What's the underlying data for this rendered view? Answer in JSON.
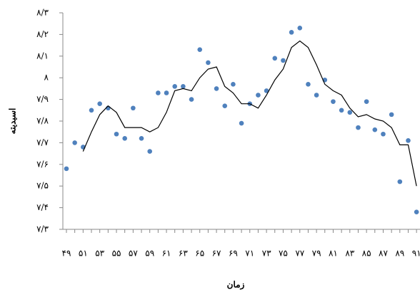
{
  "chart_data": {
    "type": "line",
    "y_label": "اسیدیته",
    "x_label": "زمان",
    "categories": [
      "۴۹",
      null,
      "۵۱",
      null,
      "۵۳",
      null,
      "۵۵",
      null,
      "۵۷",
      null,
      "۵۹",
      null,
      "۶۱",
      null,
      "۶۳",
      null,
      "۶۵",
      null,
      "۶۷",
      null,
      "۶۹",
      null,
      "۷۱",
      null,
      "۷۳",
      null,
      "۷۵",
      null,
      "۷۷",
      null,
      "۷۹",
      null,
      "۸۱",
      null,
      "۸۳",
      null,
      "۸۵",
      null,
      "۸۷",
      null,
      "۸۹",
      null,
      "۹۱"
    ],
    "series": [
      {
        "mode": "markers",
        "color": "#4f81bd",
        "values": [
          7.58,
          7.7,
          7.68,
          7.85,
          7.88,
          7.86,
          7.74,
          7.72,
          7.86,
          7.72,
          7.66,
          7.93,
          7.93,
          7.96,
          7.96,
          7.9,
          8.13,
          8.07,
          7.95,
          7.87,
          7.97,
          7.79,
          7.88,
          7.92,
          7.94,
          8.09,
          8.08,
          8.21,
          8.23,
          7.97,
          7.92,
          7.99,
          7.89,
          7.85,
          7.84,
          7.77,
          7.89,
          7.76,
          7.74,
          7.83,
          7.52,
          7.71,
          7.38
        ]
      },
      {
        "mode": "line",
        "color": "#000000",
        "values": [
          null,
          null,
          7.66,
          7.75,
          7.83,
          7.87,
          7.84,
          7.77,
          7.77,
          7.77,
          7.75,
          7.77,
          7.84,
          7.94,
          7.95,
          7.94,
          8.0,
          8.04,
          8.05,
          7.96,
          7.93,
          7.88,
          7.88,
          7.86,
          7.92,
          7.99,
          8.04,
          8.14,
          8.17,
          8.14,
          8.06,
          7.97,
          7.94,
          7.92,
          7.86,
          7.82,
          7.83,
          7.81,
          7.8,
          7.77,
          7.69,
          7.69,
          7.5
        ]
      }
    ],
    "ylim": [
      7.3,
      8.3
    ],
    "yticks": [
      {
        "value": 7.3,
        "label": "۷/۳"
      },
      {
        "value": 7.4,
        "label": "۷/۴"
      },
      {
        "value": 7.5,
        "label": "۷/۵"
      },
      {
        "value": 7.6,
        "label": "۷/۶"
      },
      {
        "value": 7.7,
        "label": "۷/۷"
      },
      {
        "value": 7.8,
        "label": "۷/۸"
      },
      {
        "value": 7.9,
        "label": "۷/۹"
      },
      {
        "value": 8,
        "label": "۸"
      },
      {
        "value": 8.1,
        "label": "۸/۱"
      },
      {
        "value": 8.2,
        "label": "۸/۲"
      },
      {
        "value": 8.3,
        "label": "۸/۳"
      }
    ],
    "grid": false
  }
}
